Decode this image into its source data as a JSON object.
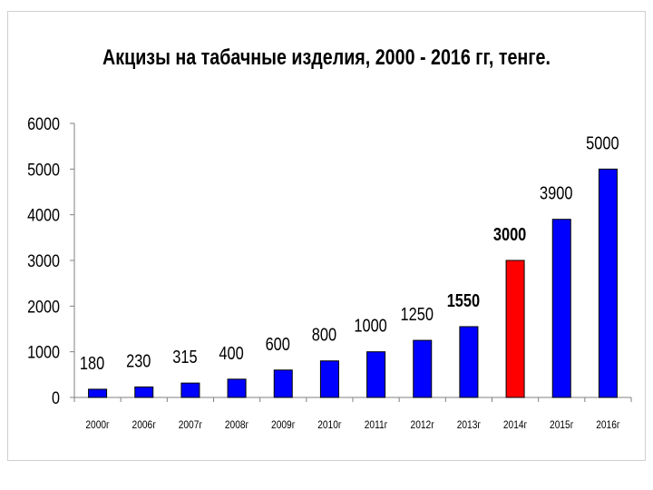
{
  "chart_data": {
    "type": "bar",
    "title": "Акцизы на табачные изделия, 2000 - 2016 гг, тенге.",
    "xlabel": "",
    "ylabel": "",
    "ylim": [
      0,
      6000
    ],
    "yticks": [
      "0",
      "1000",
      "2000",
      "3000",
      "4000",
      "5000",
      "6000"
    ],
    "grid": false,
    "legend": "none",
    "categories": [
      "2000г",
      "2006г",
      "2007г",
      "2008г",
      "2009г",
      "2010г",
      "2011г",
      "2012г",
      "2013г",
      "2014г",
      "2015г",
      "2016г"
    ],
    "values": [
      180,
      230,
      315,
      400,
      600,
      800,
      1000,
      1250,
      1550,
      3000,
      3900,
      5000
    ],
    "data_labels": [
      "180",
      "230",
      "315",
      "400",
      "600",
      "800",
      "1000",
      "1250",
      "1550",
      "3000",
      "3900",
      "5000"
    ],
    "bar_colors": [
      "#0000ff",
      "#0000ff",
      "#0000ff",
      "#0000ff",
      "#0000ff",
      "#0000ff",
      "#0000ff",
      "#0000ff",
      "#0000ff",
      "#ff0000",
      "#0000ff",
      "#0000ff"
    ],
    "label_colors": [
      "#000000",
      "#000000",
      "#000000",
      "#000000",
      "#000000",
      "#000000",
      "#000000",
      "#000000",
      "#0000cc",
      "#e00000",
      "#000000",
      "#000000"
    ],
    "label_bold": [
      false,
      false,
      false,
      false,
      false,
      false,
      false,
      false,
      true,
      true,
      false,
      false
    ]
  }
}
